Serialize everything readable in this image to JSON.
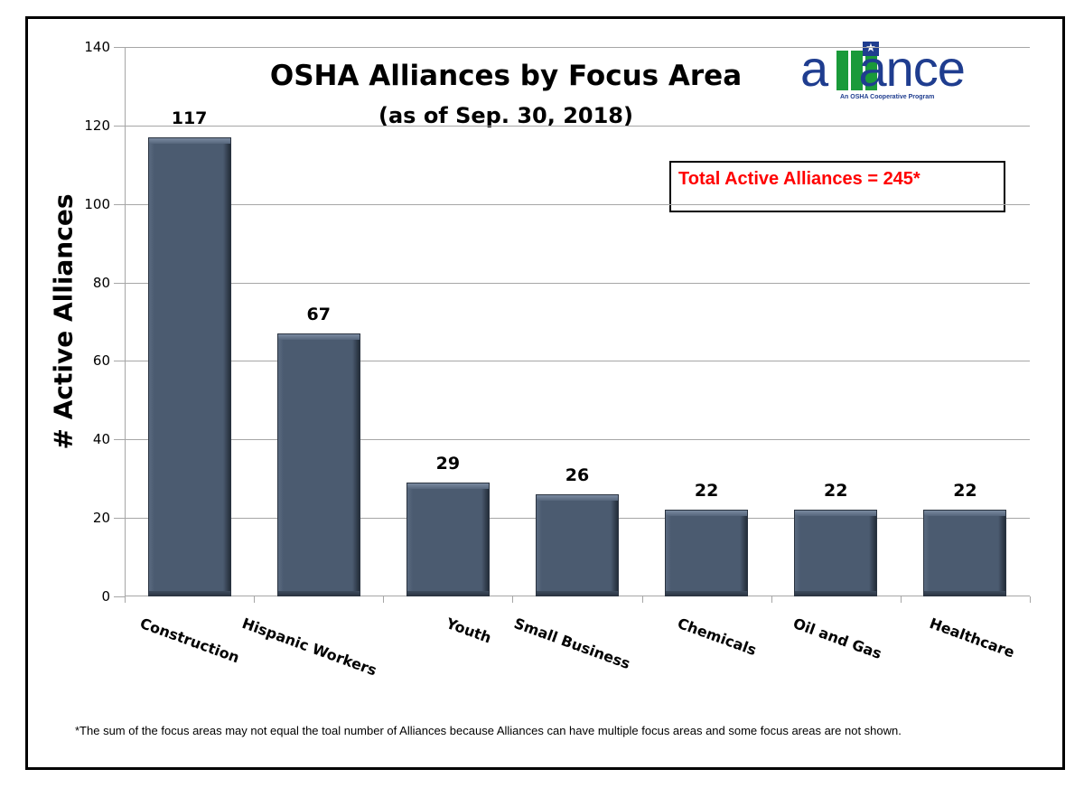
{
  "title": "OSHA Alliances by Focus Area",
  "subtitle": "(as of  Sep. 30, 2018)",
  "total_box": {
    "text": "Total Active Alliances  = 245*"
  },
  "logo": {
    "word": "alliance",
    "tagline": "An OSHA Cooperative Program"
  },
  "footnote": "*The sum of the focus areas may not equal the toal number of Alliances because Alliances can have multiple  focus areas and some focus areas are not shown.",
  "colors": {
    "bar": "#4b5b70",
    "total_text": "#ff0000",
    "logo_blue": "#1f3d8f",
    "logo_green": "#1a9a3a",
    "grid": "#a6a6a6"
  },
  "chart_data": {
    "type": "bar",
    "title": "OSHA Alliances by Focus Area",
    "subtitle": "(as of  Sep. 30, 2018)",
    "xlabel": "",
    "ylabel": "# Active Alliances",
    "categories": [
      "Construction",
      "Hispanic Workers",
      "Youth",
      "Small Business",
      "Chemicals",
      "Oil and Gas",
      "Healthcare"
    ],
    "values": [
      117,
      67,
      29,
      26,
      22,
      22,
      22
    ],
    "value_labels": [
      "117",
      "67",
      "29",
      "26",
      "22",
      "22",
      "22"
    ],
    "ylim": [
      0,
      140
    ],
    "yticks": [
      "0",
      "20",
      "40",
      "60",
      "80",
      "100",
      "120",
      "140"
    ],
    "grid": true,
    "legend": null,
    "annotations": [
      "Total Active Alliances  = 245*"
    ]
  }
}
